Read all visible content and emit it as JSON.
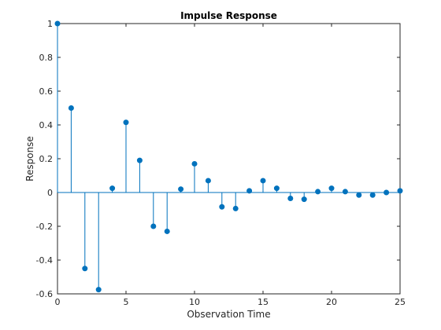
{
  "chart_data": {
    "type": "stem",
    "title": "Impulse Response",
    "xlabel": "Observation Time",
    "ylabel": "Response",
    "xlim": [
      0,
      25
    ],
    "ylim": [
      -0.6,
      1
    ],
    "xticks": [
      0,
      5,
      10,
      15,
      20,
      25
    ],
    "yticks": [
      -0.6,
      -0.4,
      -0.2,
      0,
      0.2,
      0.4,
      0.6,
      0.8,
      1
    ],
    "xtick_labels": [
      "0",
      "5",
      "10",
      "15",
      "20",
      "25"
    ],
    "ytick_labels": [
      "-0.6",
      "-0.4",
      "-0.2",
      "0",
      "0.2",
      "0.4",
      "0.6",
      "0.8",
      "1"
    ],
    "grid": false,
    "box": true,
    "series": [
      {
        "color": "#0072BD",
        "marker": "filled-circle",
        "x": [
          0,
          1,
          2,
          3,
          4,
          5,
          6,
          7,
          8,
          9,
          10,
          11,
          12,
          13,
          14,
          15,
          16,
          17,
          18,
          19,
          20,
          21,
          22,
          23,
          24,
          25
        ],
        "values": [
          1.0,
          0.5,
          -0.45,
          -0.575,
          0.025,
          0.415,
          0.19,
          -0.2,
          -0.23,
          0.02,
          0.17,
          0.07,
          -0.085,
          -0.095,
          0.01,
          0.07,
          0.025,
          -0.035,
          -0.04,
          0.005,
          0.025,
          0.005,
          -0.015,
          -0.015,
          0.0,
          0.01
        ]
      }
    ]
  }
}
